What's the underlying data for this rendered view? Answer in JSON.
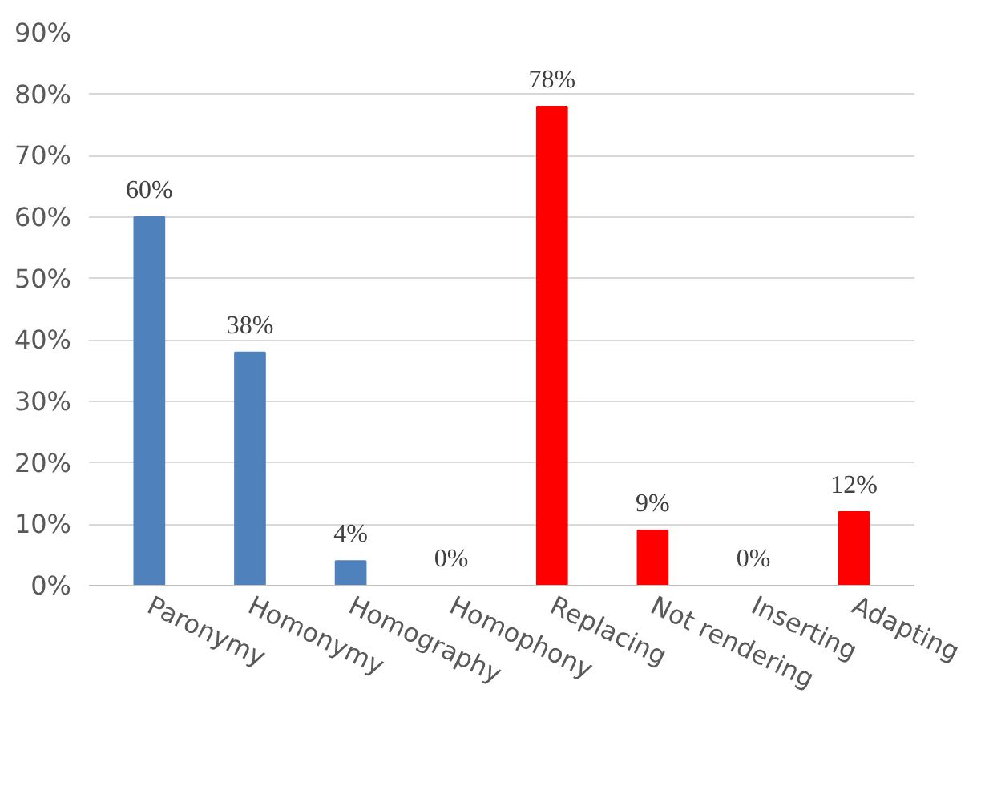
{
  "chart_data": {
    "type": "bar",
    "categories": [
      "Paronymy",
      "Homonymy",
      "Homography",
      "Homophony",
      "Replacing",
      "Not rendering",
      "Inserting",
      "Adapting"
    ],
    "values": [
      60,
      38,
      4,
      0,
      78,
      9,
      0,
      12
    ],
    "colors": [
      "#4f81bd",
      "#4f81bd",
      "#4f81bd",
      "#4f81bd",
      "#ff0000",
      "#ff0000",
      "#ff0000",
      "#ff0000"
    ],
    "value_labels": [
      "60%",
      "38%",
      "4%",
      "0%",
      "78%",
      "9%",
      "0%",
      "12%"
    ],
    "ylim": [
      0,
      90
    ],
    "yticks": [
      {
        "value": 0,
        "label": "0%"
      },
      {
        "value": 10,
        "label": "10%"
      },
      {
        "value": 20,
        "label": "20%"
      },
      {
        "value": 30,
        "label": "30%"
      },
      {
        "value": 40,
        "label": "40%"
      },
      {
        "value": 50,
        "label": "50%"
      },
      {
        "value": 60,
        "label": "60%"
      },
      {
        "value": 70,
        "label": "70%"
      },
      {
        "value": 80,
        "label": "80%"
      },
      {
        "value": 90,
        "label": "90%"
      }
    ],
    "grid": "y"
  }
}
